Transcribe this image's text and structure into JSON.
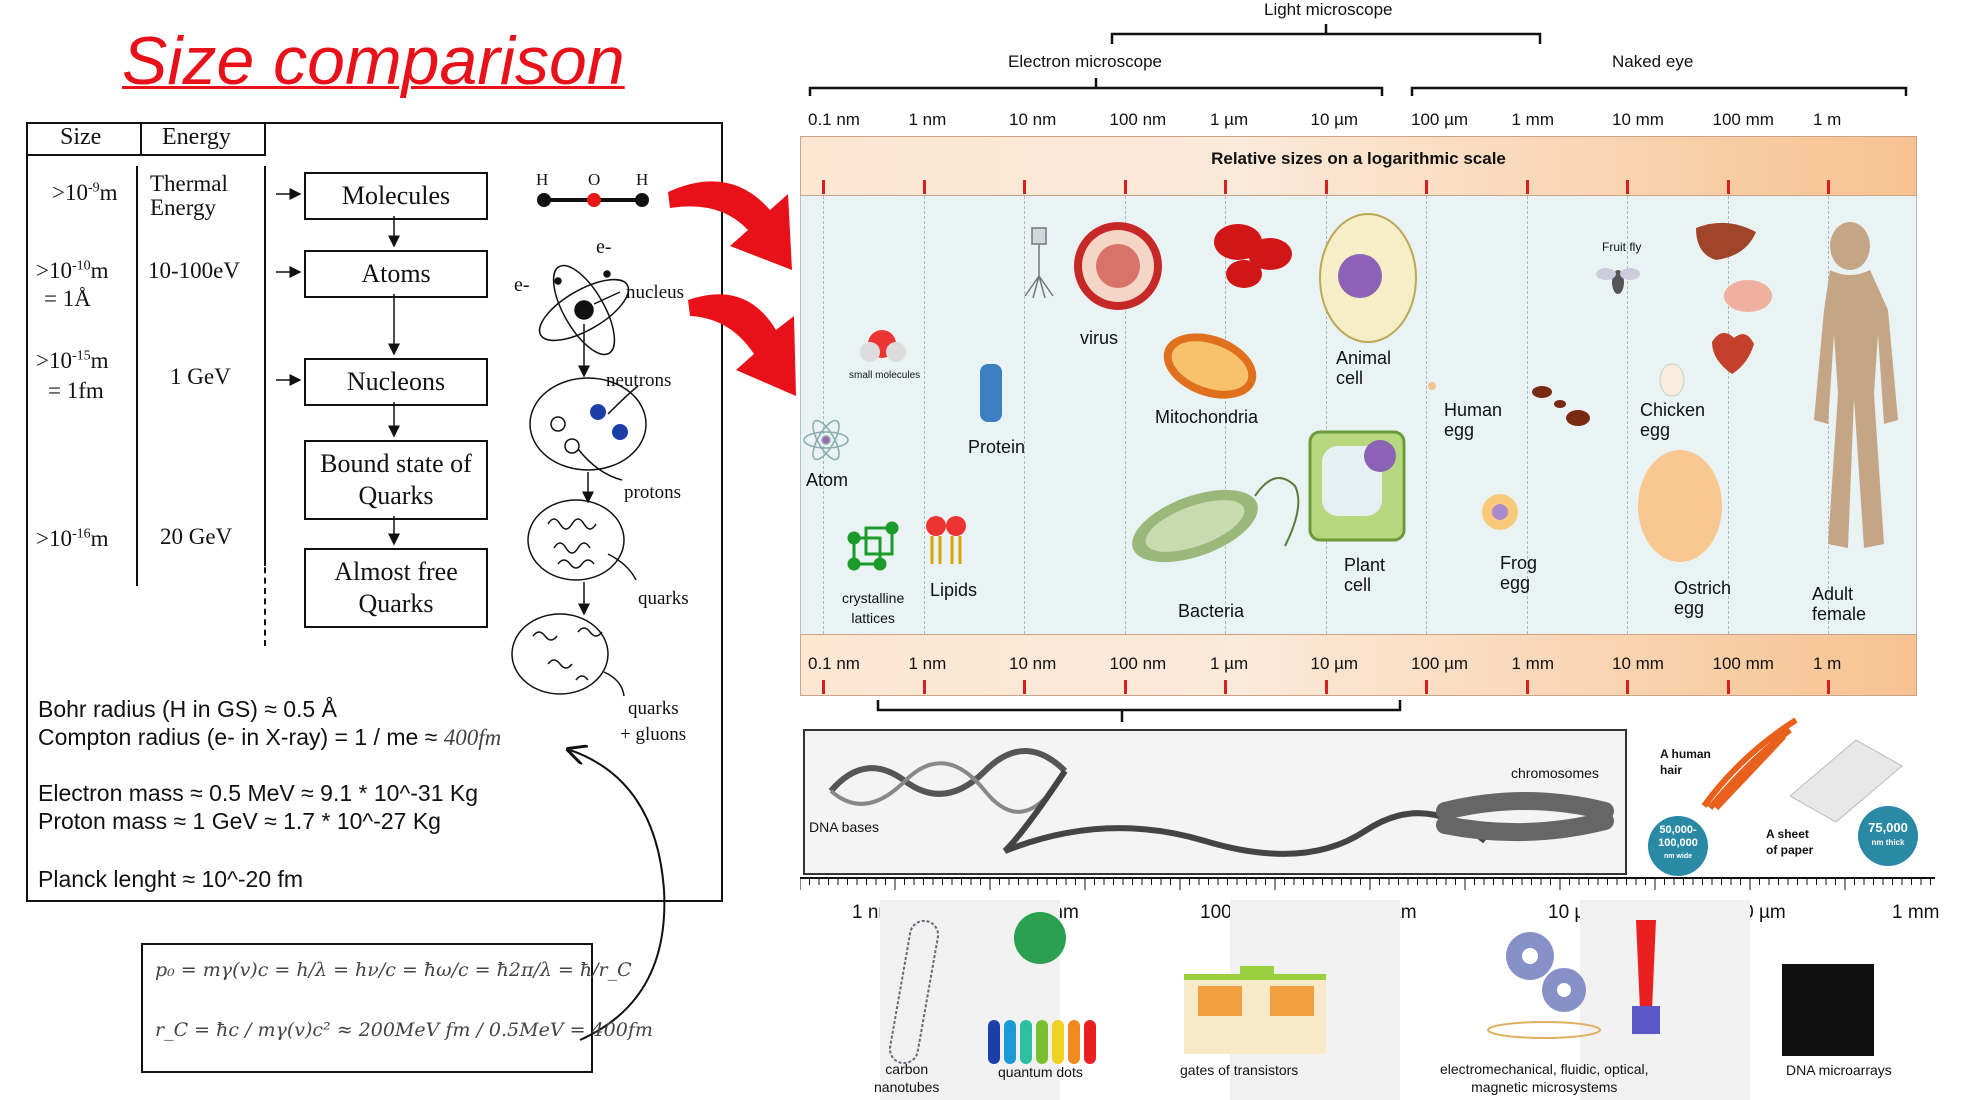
{
  "title": "Size comparison",
  "left_table": {
    "headers": [
      "Size",
      "Energy"
    ],
    "rows": [
      {
        "size": ">10⁻⁹m",
        "energy": "Thermal Energy",
        "box": "Molecules"
      },
      {
        "size": ">10⁻¹⁰m = 1Å",
        "energy": "10-100eV",
        "box": "Atoms"
      },
      {
        "size": ">10⁻¹⁵m = 1fm",
        "energy": "1 GeV",
        "box": "Nucleons"
      },
      {
        "size": "",
        "energy": "",
        "box": "Bound state of Quarks"
      },
      {
        "size": ">10⁻¹⁶m",
        "energy": "20 GeV",
        "box": "Almost free Quarks"
      }
    ],
    "size_lines": [
      ">10",
      "-9",
      "m",
      ">10",
      "-10",
      "m",
      "= 1Å",
      ">10",
      "-15",
      "m",
      "= 1fm",
      ">10",
      "-16",
      "m"
    ],
    "energy_thermal": [
      "Thermal",
      "Energy"
    ],
    "box_bound": [
      "Bound state of",
      "Quarks"
    ],
    "box_free": [
      "Almost free",
      "Quarks"
    ],
    "water_atoms": [
      "H",
      "O",
      "H"
    ],
    "atom_labels": {
      "electron1": "e-",
      "electron2": "e-",
      "nucleus": "nucleus"
    },
    "nucleus_labels": {
      "neutrons": "neutrons",
      "protons": "protons"
    },
    "quark_labels": {
      "quarks": "quarks",
      "quarks_gluons_1": "quarks",
      "quarks_gluons_2": "+ gluons"
    }
  },
  "notes": [
    "Bohr radius (H in GS) ≈  0.5 Å",
    "Compton radius (e- in X-ray) = 1 / me ≈",
    "Electron mass  ≈  0.5 MeV ≈  9.1 * 10^-31 Kg",
    "Proton   mass   ≈    1 GeV  ≈  1.7 * 10^-27 Kg",
    "Planck lenght   ≈ 10^-20 fm"
  ],
  "compton_value": "400fm",
  "formula": {
    "line1": "p₀ = mγ(v)c = h/λ = hν/c = ħω/c = ħ2π/λ = ħ/r_C",
    "line2": "r_C = ħc / mγ(v)c² ≈ 200MeV fm / 0.5MeV = 400fm"
  },
  "microscopes": {
    "light": "Light microscope",
    "electron": "Electron microscope",
    "naked": "Naked eye"
  },
  "scale_ticks": [
    "0.1 nm",
    "1 nm",
    "10 nm",
    "100 nm",
    "1 µm",
    "10 µm",
    "100 µm",
    "1 mm",
    "10 mm",
    "100 mm",
    "1 m"
  ],
  "scale_title": "Relative sizes on a logarithmic scale",
  "organisms": {
    "atom": "Atom",
    "small_molecules": "small molecules",
    "crystalline": [
      "crystalline",
      "lattices"
    ],
    "lipids": "Lipids",
    "protein": "Protein",
    "virus": "virus",
    "mitochondria": "Mitochondria",
    "bacteria": "Bacteria",
    "animal_cell": [
      "Animal",
      "cell"
    ],
    "plant_cell": [
      "Plant",
      "cell"
    ],
    "human_egg": [
      "Human",
      "egg"
    ],
    "frog_egg": [
      "Frog",
      "egg"
    ],
    "fruit_fly": "Fruit fly",
    "chicken_egg": [
      "Chicken",
      "egg"
    ],
    "ostrich_egg": [
      "Ostrich",
      "egg"
    ],
    "adult_female": [
      "Adult",
      "female"
    ]
  },
  "nano_panel": {
    "dna_bases": "DNA bases",
    "chromosomes": "chromosomes",
    "hair": [
      "A human",
      "hair"
    ],
    "hair_badge": [
      "50,000-",
      "100,000",
      "nm wide"
    ],
    "paper": [
      "A sheet",
      "of paper"
    ],
    "paper_badge": [
      "75,000",
      "nm thick"
    ]
  },
  "bottom_ticks": [
    "1 nm",
    "10 nm",
    "100 nm",
    "1 µm",
    "10 µm",
    "100 µm",
    "1 mm"
  ],
  "bottom_items": {
    "carbon": [
      "carbon",
      "nanotubes"
    ],
    "qdots": "quantum dots",
    "gates": "gates of transistors",
    "mems": [
      "electromechanical, fluidic, optical,",
      "magnetic microsystems"
    ],
    "dna_micro": "DNA microarrays"
  },
  "colors": {
    "title": "#e8111a",
    "arrow": "#e8111a",
    "tick": "#d42020",
    "panel_bg": "#eaf3f4"
  }
}
